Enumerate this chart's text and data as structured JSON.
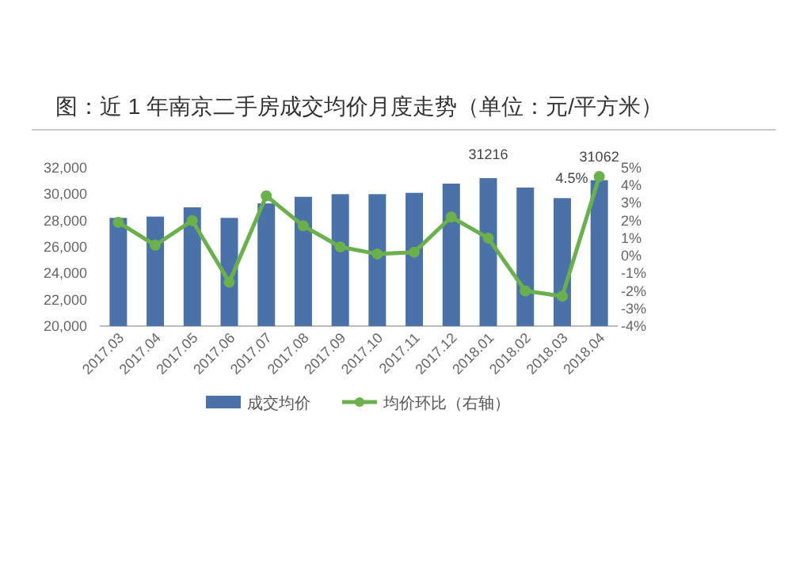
{
  "chart_data": {
    "type": "bar",
    "title": "图：近 1 年南京二手房成交均价月度走势（单位：元/平方米）",
    "categories": [
      "2017.03",
      "2017.04",
      "2017.05",
      "2017.06",
      "2017.07",
      "2017.08",
      "2017.09",
      "2017.10",
      "2017.11",
      "2017.12",
      "2018.01",
      "2018.02",
      "2018.03",
      "2018.04"
    ],
    "ylim": [
      20000,
      32000
    ],
    "yticks": [
      {
        "value": 20000,
        "label": "20,000"
      },
      {
        "value": 22000,
        "label": "22,000"
      },
      {
        "value": 24000,
        "label": "24,000"
      },
      {
        "value": 26000,
        "label": "26,000"
      },
      {
        "value": 28000,
        "label": "28,000"
      },
      {
        "value": 30000,
        "label": "30,000"
      },
      {
        "value": 32000,
        "label": "32,000"
      }
    ],
    "y2lim": [
      -4,
      5
    ],
    "y2ticks": [
      {
        "value": -4,
        "label": "-4%"
      },
      {
        "value": -3,
        "label": "-3%"
      },
      {
        "value": -2,
        "label": "-2%"
      },
      {
        "value": -1,
        "label": "-1%"
      },
      {
        "value": 0,
        "label": "0%"
      },
      {
        "value": 1,
        "label": "1%"
      },
      {
        "value": 2,
        "label": "2%"
      },
      {
        "value": 3,
        "label": "3%"
      },
      {
        "value": 4,
        "label": "4%"
      },
      {
        "value": 5,
        "label": "5%"
      }
    ],
    "legend": "bottom",
    "series": [
      {
        "name": "成交均价",
        "type": "bar",
        "color": "#4a71a8",
        "values": [
          28200,
          28300,
          29000,
          28200,
          29300,
          29800,
          30000,
          30000,
          30100,
          30800,
          31216,
          30500,
          29700,
          31062
        ],
        "value_labels": [
          null,
          null,
          null,
          null,
          null,
          null,
          null,
          null,
          null,
          null,
          "31216",
          null,
          null,
          "31062"
        ]
      },
      {
        "name": "均价环比（右轴）",
        "type": "line",
        "axis": "y2",
        "color": "#6ab04c",
        "marker": "circle",
        "values": [
          1.9,
          0.6,
          2.0,
          -1.5,
          3.4,
          1.7,
          0.5,
          0.1,
          0.2,
          2.2,
          1.0,
          -2.0,
          -2.3,
          4.5
        ],
        "value_labels": [
          null,
          null,
          null,
          null,
          null,
          null,
          null,
          null,
          null,
          null,
          null,
          null,
          null,
          "4.5%"
        ]
      }
    ]
  }
}
